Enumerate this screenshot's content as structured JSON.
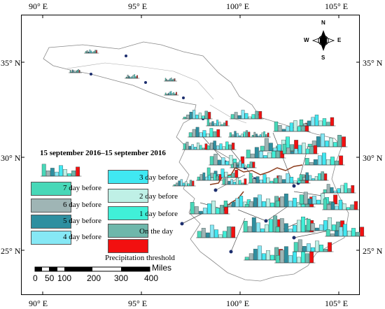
{
  "lon_labels": [
    "90° E",
    "95° E",
    "100° E",
    "105° E"
  ],
  "lat_labels": [
    "35° N",
    "30° N",
    "25° N"
  ],
  "title": "15 september 2016–15 september 2016",
  "compass": {
    "n": "N",
    "s": "S",
    "e": "E",
    "w": "W"
  },
  "legend": [
    {
      "label": "7 day before",
      "color": "#48d8b8"
    },
    {
      "label": "6 day before",
      "color": "#9fb5b5"
    },
    {
      "label": "5 day before",
      "color": "#2e8fa0"
    },
    {
      "label": "4 day before",
      "color": "#86e8f5"
    },
    {
      "label": "3 day before",
      "color": "#40e8f2"
    },
    {
      "label": "2 day before",
      "color": "#bff0e6"
    },
    {
      "label": "1 day before",
      "color": "#40f0d8"
    },
    {
      "label": "On the day",
      "color": "#6eb7ab"
    },
    {
      "label": "Precipitation threshold",
      "color": "#f21010"
    }
  ],
  "scale_bar": {
    "units": "Miles",
    "ticks": [
      "0",
      "50",
      "100",
      "200",
      "300",
      "400"
    ]
  }
}
